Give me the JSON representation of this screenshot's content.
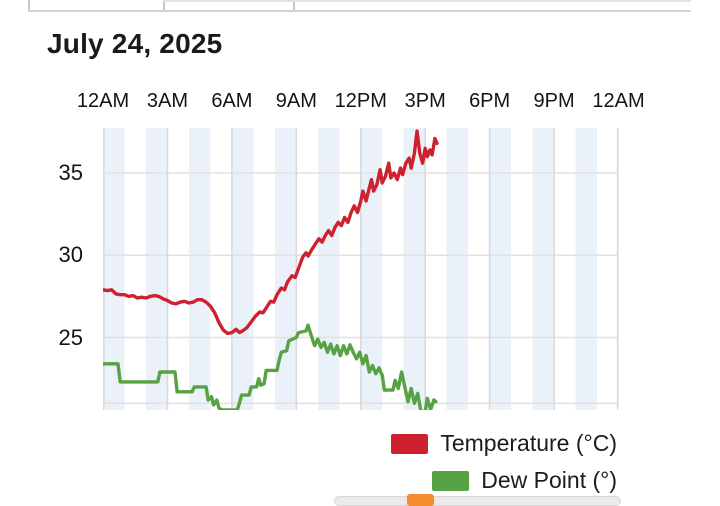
{
  "title": "July 24, 2025",
  "chart_data": {
    "type": "line",
    "title": "July 24, 2025",
    "xlabel": "",
    "ylabel": "",
    "x_axis": {
      "position": "top",
      "tick_labels": [
        "12AM",
        "3AM",
        "6AM",
        "9AM",
        "12PM",
        "3PM",
        "6PM",
        "9PM",
        "12AM"
      ],
      "tick_hours": [
        0,
        3,
        6,
        9,
        12,
        15,
        18,
        21,
        24
      ],
      "range_hours": [
        0,
        24
      ]
    },
    "y_axis": {
      "tick_labels": [
        "35",
        "30",
        "25"
      ],
      "tick_values": [
        35,
        30,
        25
      ],
      "unlabeled_gridline_value": 21,
      "range": [
        20.6,
        37.7
      ]
    },
    "grid": true,
    "gridline_color_h": "#e2e2e2",
    "gridline_color_v": "#d9d9d9",
    "hour_stripe_color": "#ebf1f9",
    "legend_position": "bottom-right",
    "partial_third_legend_color": "#f58a2e",
    "series": [
      {
        "name": "Temperature (°C)",
        "color": "#ce2130",
        "points": [
          [
            0,
            27.9
          ],
          [
            0.2,
            27.85
          ],
          [
            0.4,
            27.9
          ],
          [
            0.6,
            27.65
          ],
          [
            0.8,
            27.6
          ],
          [
            1.0,
            27.6
          ],
          [
            1.2,
            27.5
          ],
          [
            1.4,
            27.55
          ],
          [
            1.6,
            27.4
          ],
          [
            1.8,
            27.45
          ],
          [
            2.0,
            27.4
          ],
          [
            2.2,
            27.5
          ],
          [
            2.4,
            27.55
          ],
          [
            2.6,
            27.5
          ],
          [
            2.8,
            27.35
          ],
          [
            3.0,
            27.25
          ],
          [
            3.2,
            27.1
          ],
          [
            3.4,
            27.05
          ],
          [
            3.6,
            27.15
          ],
          [
            3.8,
            27.2
          ],
          [
            4.0,
            27.1
          ],
          [
            4.2,
            27.15
          ],
          [
            4.4,
            27.3
          ],
          [
            4.6,
            27.3
          ],
          [
            4.8,
            27.15
          ],
          [
            5.0,
            26.9
          ],
          [
            5.2,
            26.5
          ],
          [
            5.4,
            25.9
          ],
          [
            5.6,
            25.45
          ],
          [
            5.8,
            25.25
          ],
          [
            6.0,
            25.3
          ],
          [
            6.2,
            25.5
          ],
          [
            6.35,
            25.3
          ],
          [
            6.5,
            25.4
          ],
          [
            6.7,
            25.6
          ],
          [
            6.9,
            25.95
          ],
          [
            7.1,
            26.3
          ],
          [
            7.3,
            26.55
          ],
          [
            7.45,
            26.5
          ],
          [
            7.6,
            26.8
          ],
          [
            7.8,
            27.2
          ],
          [
            7.95,
            27.15
          ],
          [
            8.1,
            27.6
          ],
          [
            8.3,
            28.0
          ],
          [
            8.45,
            27.9
          ],
          [
            8.6,
            28.4
          ],
          [
            8.8,
            28.75
          ],
          [
            8.95,
            28.65
          ],
          [
            9.1,
            29.2
          ],
          [
            9.3,
            29.9
          ],
          [
            9.45,
            30.15
          ],
          [
            9.55,
            29.95
          ],
          [
            9.7,
            30.3
          ],
          [
            9.9,
            30.7
          ],
          [
            10.05,
            31.0
          ],
          [
            10.2,
            30.8
          ],
          [
            10.35,
            31.2
          ],
          [
            10.5,
            31.5
          ],
          [
            10.65,
            31.2
          ],
          [
            10.8,
            31.7
          ],
          [
            10.95,
            32.0
          ],
          [
            11.1,
            31.8
          ],
          [
            11.25,
            32.3
          ],
          [
            11.4,
            32.0
          ],
          [
            11.55,
            32.6
          ],
          [
            11.7,
            33.0
          ],
          [
            11.85,
            32.6
          ],
          [
            12.0,
            33.3
          ],
          [
            12.1,
            33.9
          ],
          [
            12.25,
            33.3
          ],
          [
            12.4,
            34.1
          ],
          [
            12.5,
            34.6
          ],
          [
            12.6,
            33.9
          ],
          [
            12.75,
            34.3
          ],
          [
            12.9,
            35.2
          ],
          [
            13.0,
            34.4
          ],
          [
            13.15,
            34.8
          ],
          [
            13.3,
            35.6
          ],
          [
            13.4,
            34.7
          ],
          [
            13.55,
            35.0
          ],
          [
            13.7,
            34.6
          ],
          [
            13.85,
            35.3
          ],
          [
            13.95,
            34.9
          ],
          [
            14.1,
            35.6
          ],
          [
            14.25,
            35.9
          ],
          [
            14.35,
            35.3
          ],
          [
            14.5,
            36.2
          ],
          [
            14.62,
            37.55
          ],
          [
            14.75,
            36.2
          ],
          [
            14.88,
            35.6
          ],
          [
            15.0,
            36.5
          ],
          [
            15.1,
            36.0
          ],
          [
            15.22,
            36.4
          ],
          [
            15.32,
            36.1
          ],
          [
            15.45,
            37.1
          ],
          [
            15.55,
            36.8
          ]
        ]
      },
      {
        "name": "Dew Point (°)",
        "color": "#57a244",
        "points": [
          [
            0,
            23.4
          ],
          [
            0.7,
            23.4
          ],
          [
            0.8,
            22.3
          ],
          [
            2.55,
            22.3
          ],
          [
            2.65,
            22.9
          ],
          [
            3.35,
            22.9
          ],
          [
            3.45,
            21.7
          ],
          [
            4.15,
            21.7
          ],
          [
            4.25,
            22.0
          ],
          [
            4.8,
            22.0
          ],
          [
            4.9,
            21.2
          ],
          [
            5.05,
            21.4
          ],
          [
            5.15,
            20.9
          ],
          [
            5.3,
            21.2
          ],
          [
            5.4,
            20.7
          ],
          [
            5.55,
            20.6
          ],
          [
            6.25,
            20.6
          ],
          [
            6.35,
            21.0
          ],
          [
            6.45,
            21.5
          ],
          [
            6.8,
            21.5
          ],
          [
            6.9,
            22.0
          ],
          [
            7.15,
            22.0
          ],
          [
            7.25,
            22.5
          ],
          [
            7.35,
            22.1
          ],
          [
            7.5,
            22.2
          ],
          [
            7.6,
            23.0
          ],
          [
            8.1,
            23.0
          ],
          [
            8.2,
            23.6
          ],
          [
            8.3,
            24.1
          ],
          [
            8.55,
            24.2
          ],
          [
            8.65,
            24.8
          ],
          [
            9.0,
            25.0
          ],
          [
            9.1,
            25.3
          ],
          [
            9.45,
            25.4
          ],
          [
            9.55,
            25.75
          ],
          [
            9.65,
            25.3
          ],
          [
            9.75,
            24.9
          ],
          [
            9.85,
            24.5
          ],
          [
            10.0,
            24.9
          ],
          [
            10.15,
            24.4
          ],
          [
            10.3,
            24.7
          ],
          [
            10.45,
            24.1
          ],
          [
            10.6,
            24.6
          ],
          [
            10.75,
            24.0
          ],
          [
            10.9,
            24.5
          ],
          [
            11.05,
            23.9
          ],
          [
            11.2,
            24.5
          ],
          [
            11.35,
            24.0
          ],
          [
            11.5,
            24.55
          ],
          [
            11.65,
            24.1
          ],
          [
            11.8,
            23.7
          ],
          [
            11.95,
            24.1
          ],
          [
            12.1,
            23.4
          ],
          [
            12.25,
            23.9
          ],
          [
            12.4,
            22.9
          ],
          [
            12.55,
            23.3
          ],
          [
            12.7,
            22.8
          ],
          [
            12.85,
            23.15
          ],
          [
            13.0,
            22.7
          ],
          [
            13.1,
            21.8
          ],
          [
            13.5,
            21.8
          ],
          [
            13.6,
            22.4
          ],
          [
            13.75,
            21.9
          ],
          [
            13.9,
            22.9
          ],
          [
            14.05,
            22.0
          ],
          [
            14.2,
            21.1
          ],
          [
            14.35,
            21.9
          ],
          [
            14.5,
            21.0
          ],
          [
            14.65,
            21.6
          ],
          [
            14.8,
            20.5
          ],
          [
            15.0,
            20.5
          ],
          [
            15.1,
            21.3
          ],
          [
            15.25,
            20.6
          ],
          [
            15.4,
            21.2
          ],
          [
            15.5,
            21.1
          ]
        ]
      }
    ]
  },
  "legend": {
    "temperature_label": "Temperature (°C)",
    "dew_point_label": "Dew Point (°)"
  }
}
